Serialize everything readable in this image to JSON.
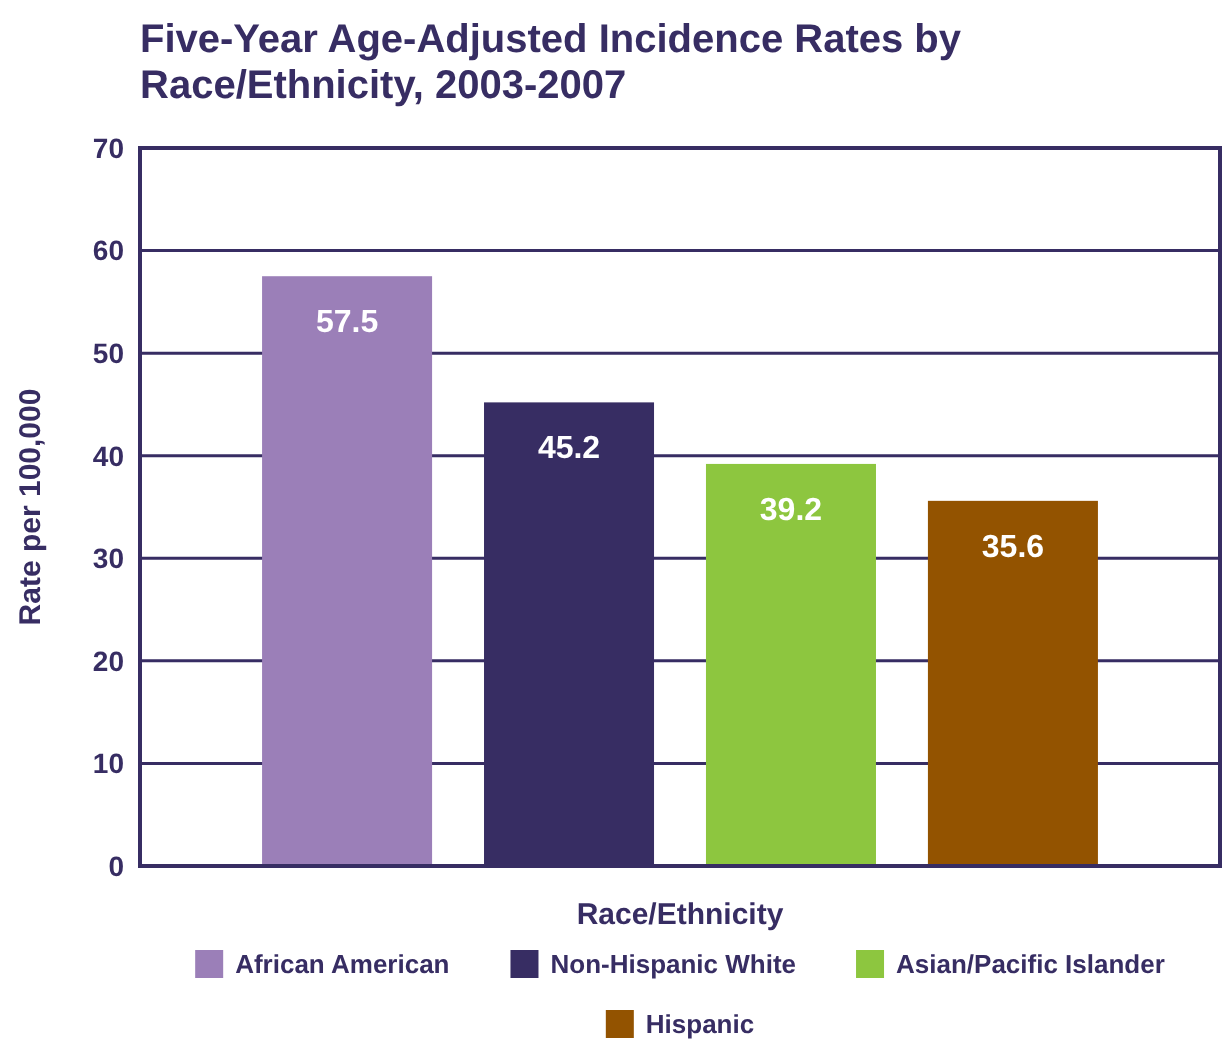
{
  "chart_data": {
    "type": "bar",
    "title": "Five-Year Age-Adjusted Incidence Rates by Race/Ethnicity, 2003-2007",
    "xlabel": "Race/Ethnicity",
    "ylabel": "Rate per 100,000",
    "categories": [
      null,
      null,
      null,
      null
    ],
    "series": [
      {
        "name": "African American",
        "color": "#9b7fb8",
        "values": [
          57.5,
          null,
          null,
          null
        ]
      },
      {
        "name": "Non-Hispanic White",
        "color": "#372d63",
        "values": [
          null,
          45.2,
          null,
          null
        ]
      },
      {
        "name": "Asian/Pacific Islander",
        "color": "#8dc63f",
        "values": [
          null,
          null,
          39.2,
          null
        ]
      },
      {
        "name": "Hispanic",
        "color": "#935300",
        "values": [
          null,
          null,
          null,
          35.6
        ]
      }
    ],
    "stacked": true,
    "ylim": [
      0,
      70
    ],
    "yticks": [
      0,
      10,
      20,
      30,
      40,
      50,
      60,
      70
    ],
    "grid": "y",
    "legend": "bottom",
    "data_labels": true
  }
}
